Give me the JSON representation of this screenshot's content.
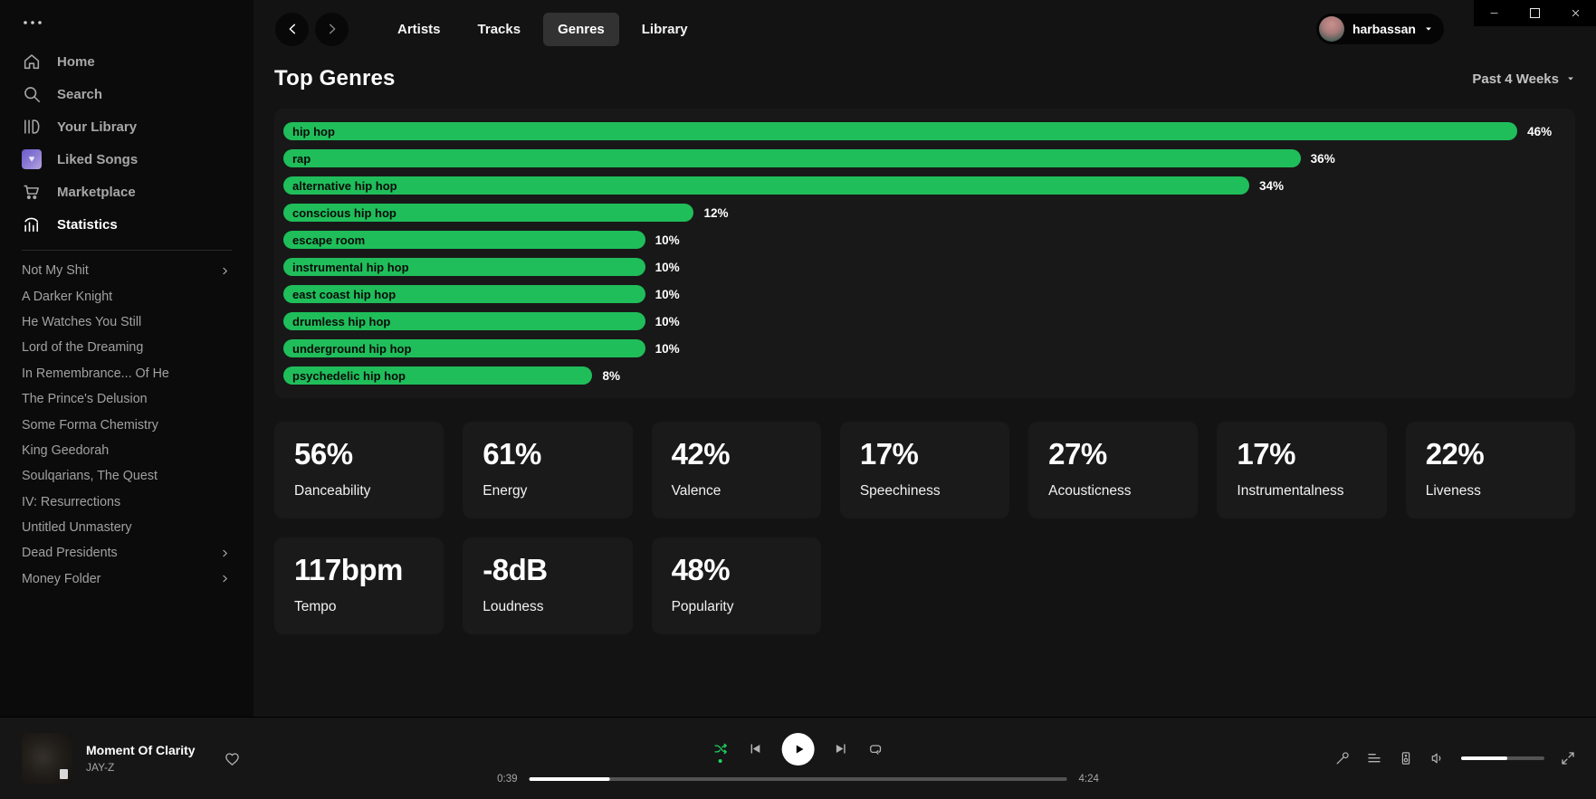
{
  "colors": {
    "accent_green": "#1fbe5a",
    "shuffle_green": "#1ed760",
    "sidebar_bg": "#0b0b0b",
    "main_bg": "#131313",
    "panel_bg": "#181818",
    "card_bg": "#1a1a1a",
    "player_bg": "#161616",
    "muted_text": "#a7a7a7"
  },
  "window": {
    "controls": [
      {
        "name": "minimize",
        "icon": "minimize-icon"
      },
      {
        "name": "maximize",
        "icon": "maximize-icon"
      },
      {
        "name": "close",
        "icon": "close-icon"
      }
    ]
  },
  "sidebar": {
    "app_menu_icon": "ellipsis-icon",
    "items": [
      {
        "label": "Home",
        "icon": "home-icon",
        "active": false
      },
      {
        "label": "Search",
        "icon": "search-icon",
        "active": false
      },
      {
        "label": "Your Library",
        "icon": "library-icon",
        "active": false
      },
      {
        "label": "Liked Songs",
        "icon": "liked-songs-icon",
        "active": false
      },
      {
        "label": "Marketplace",
        "icon": "cart-icon",
        "active": false
      },
      {
        "label": "Statistics",
        "icon": "stats-icon",
        "active": true
      }
    ],
    "playlists": [
      {
        "label": "Not My Shit",
        "has_submenu": true
      },
      {
        "label": "A Darker Knight",
        "has_submenu": false
      },
      {
        "label": "He Watches You Still",
        "has_submenu": false
      },
      {
        "label": "Lord of the Dreaming",
        "has_submenu": false
      },
      {
        "label": "In Remembrance... Of He",
        "has_submenu": false
      },
      {
        "label": "The Prince's Delusion",
        "has_submenu": false
      },
      {
        "label": "Some Forma Chemistry",
        "has_submenu": false
      },
      {
        "label": "King Geedorah",
        "has_submenu": false
      },
      {
        "label": "Soulqarians, The Quest",
        "has_submenu": false
      },
      {
        "label": "IV: Resurrections",
        "has_submenu": false
      },
      {
        "label": "Untitled Unmastery",
        "has_submenu": false
      },
      {
        "label": "Dead Presidents",
        "has_submenu": true
      },
      {
        "label": "Money Folder",
        "has_submenu": true
      }
    ]
  },
  "header": {
    "tabs": [
      {
        "label": "Artists",
        "active": false
      },
      {
        "label": "Tracks",
        "active": false
      },
      {
        "label": "Genres",
        "active": true
      },
      {
        "label": "Library",
        "active": false
      }
    ],
    "user": {
      "name": "harbassan"
    }
  },
  "page": {
    "title": "Top Genres",
    "period": "Past 4 Weeks"
  },
  "chart_data": {
    "type": "bar",
    "orientation": "horizontal",
    "title": "Top Genres",
    "period": "Past 4 Weeks",
    "unit": "percent",
    "categories": [
      "hip hop",
      "rap",
      "alternative hip hop",
      "conscious hip hop",
      "escape room",
      "instrumental hip hop",
      "east coast hip hop",
      "drumless hip hop",
      "underground hip hop",
      "psychedelic hip hop"
    ],
    "values": [
      46,
      36,
      34,
      12,
      10,
      10,
      10,
      10,
      10,
      8
    ],
    "value_labels": [
      "46%",
      "36%",
      "34%",
      "12%",
      "10%",
      "10%",
      "10%",
      "10%",
      "10%",
      "8%"
    ],
    "bar_display_pct": [
      96.2,
      79.3,
      75.3,
      32.0,
      28.2,
      28.2,
      28.2,
      28.2,
      28.2,
      24.1
    ],
    "bar_color": "#1fbe5a"
  },
  "stats": {
    "cards": [
      {
        "value": "56%",
        "label": "Danceability"
      },
      {
        "value": "61%",
        "label": "Energy"
      },
      {
        "value": "42%",
        "label": "Valence"
      },
      {
        "value": "17%",
        "label": "Speechiness"
      },
      {
        "value": "27%",
        "label": "Acousticness"
      },
      {
        "value": "17%",
        "label": "Instrumentalness"
      },
      {
        "value": "22%",
        "label": "Liveness"
      },
      {
        "value": "117bpm",
        "label": "Tempo"
      },
      {
        "value": "-8dB",
        "label": "Loudness"
      },
      {
        "value": "48%",
        "label": "Popularity"
      }
    ]
  },
  "player": {
    "track": {
      "title": "Moment Of Clarity",
      "artist": "JAY-Z"
    },
    "elapsed": "0:39",
    "duration": "4:24",
    "progress_pct": 15,
    "volume_pct": 55,
    "shuffle_active": true,
    "controls": [
      "shuffle-icon",
      "previous-icon",
      "play-icon",
      "next-icon",
      "repeat-icon"
    ],
    "right_controls": [
      "lyrics-icon",
      "queue-icon",
      "device-icon",
      "volume-icon",
      "fullscreen-icon"
    ]
  }
}
